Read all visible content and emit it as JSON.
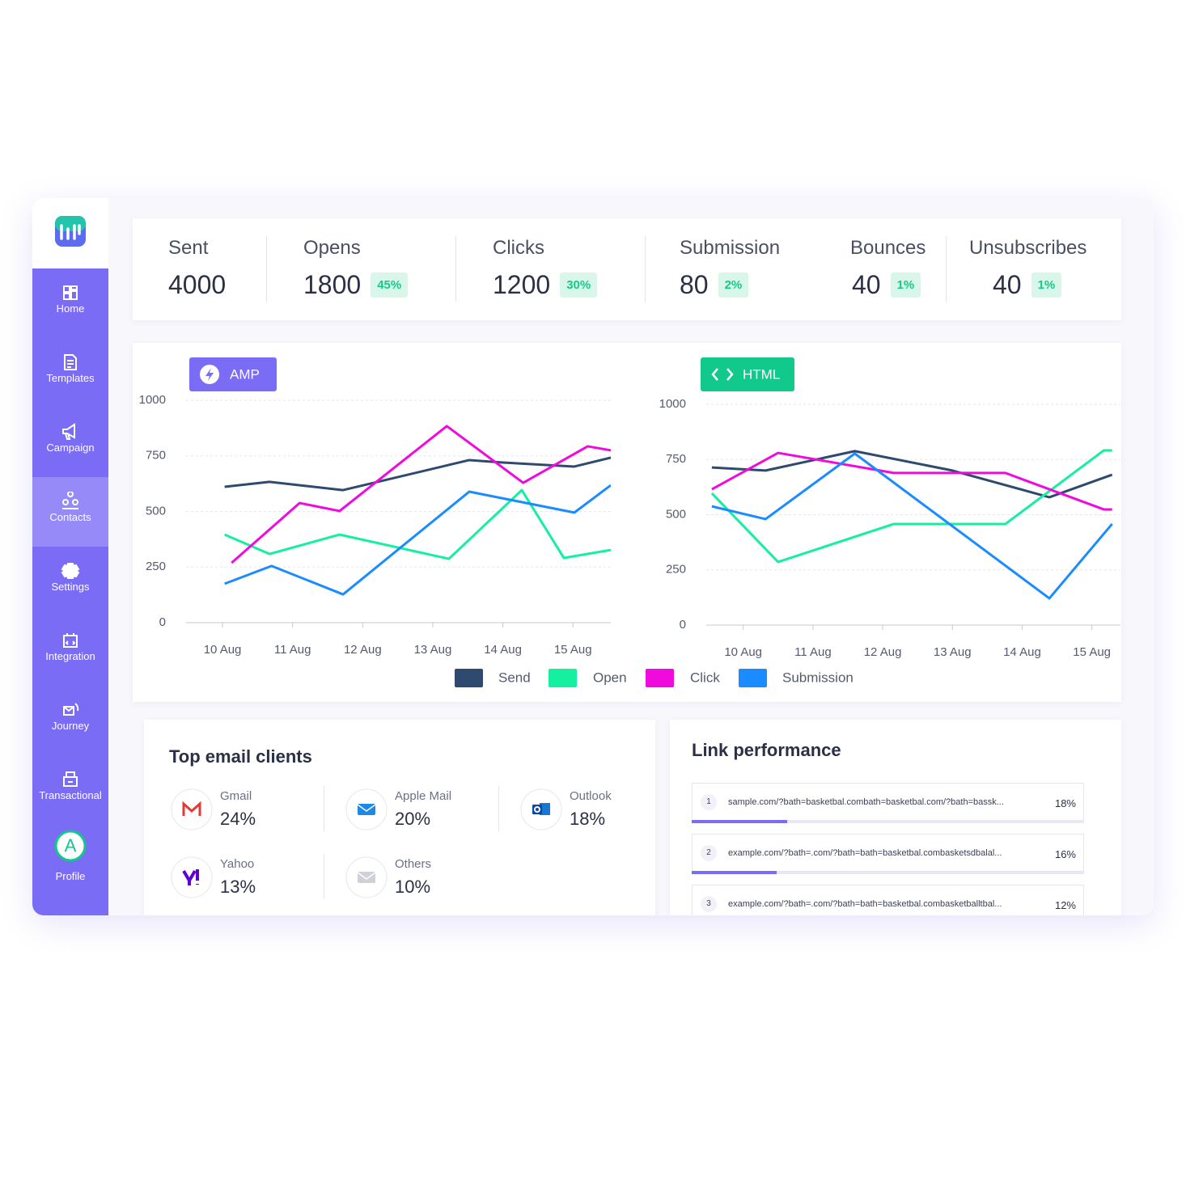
{
  "sidebar": {
    "items": [
      "Home",
      "Templates",
      "Campaign",
      "Contacts",
      "Settings",
      "Integration",
      "Journey",
      "Transactional"
    ],
    "profile": {
      "initial": "A",
      "label": "Profile"
    }
  },
  "stats": [
    {
      "label": "Sent",
      "value": 4000
    },
    {
      "label": "Opens",
      "value": 1800,
      "rate": "45%"
    },
    {
      "label": "Clicks",
      "value": 1200,
      "rate": "30%"
    },
    {
      "label": "Submission",
      "value": 80,
      "rate": "2%"
    },
    {
      "label": "Bounces",
      "value": 40,
      "rate": "1%"
    },
    {
      "label": "Unsubscribes",
      "value": 40,
      "rate": "1%"
    }
  ],
  "chart_data": [
    {
      "type": "line",
      "title": "AMP",
      "grid": true,
      "xlim": [
        9.48,
        15.54
      ],
      "xticks": [
        {
          "value": 10,
          "label": "10 Aug"
        },
        {
          "value": 11,
          "label": "11 Aug"
        },
        {
          "value": 12,
          "label": "12 Aug"
        },
        {
          "value": 13,
          "label": "13 Aug"
        },
        {
          "value": 14,
          "label": "14 Aug"
        },
        {
          "value": 15,
          "label": "15 Aug"
        }
      ],
      "ylim": [
        0,
        1000
      ],
      "yticks": [
        0,
        250,
        500,
        750,
        1000
      ],
      "series": [
        {
          "name": "Send",
          "color": "#2e4a6e",
          "x": [
            10.03,
            10.67,
            11.72,
            13.52,
            14.0,
            15.02,
            15.54
          ],
          "values": [
            611,
            633,
            596,
            731,
            720,
            702,
            742
          ]
        },
        {
          "name": "Open",
          "color": "#14f0a0",
          "x": [
            10.03,
            10.67,
            11.67,
            13.23,
            14.27,
            14.87,
            15.54
          ],
          "values": [
            396,
            309,
            396,
            287,
            596,
            291,
            327
          ]
        },
        {
          "name": "Click",
          "color": "#f00ade",
          "x": [
            10.13,
            11.1,
            11.67,
            13.2,
            14.29,
            15.21,
            15.54
          ],
          "values": [
            269,
            538,
            502,
            884,
            629,
            793,
            775
          ]
        },
        {
          "name": "Submission",
          "color": "#1a8cff",
          "x": [
            10.03,
            10.7,
            11.72,
            13.52,
            15.02,
            15.54
          ],
          "values": [
            175,
            255,
            127,
            589,
            495,
            618
          ]
        }
      ]
    },
    {
      "type": "line",
      "title": "HTML",
      "grid": true,
      "xlim": [
        9.47,
        15.41
      ],
      "xticks": [
        {
          "value": 10,
          "label": "10 Aug"
        },
        {
          "value": 11,
          "label": "11 Aug"
        },
        {
          "value": 12,
          "label": "12 Aug"
        },
        {
          "value": 13,
          "label": "13 Aug"
        },
        {
          "value": 14,
          "label": "14 Aug"
        },
        {
          "value": 15,
          "label": "15 Aug"
        }
      ],
      "ylim": [
        0,
        1000
      ],
      "yticks": [
        0,
        250,
        500,
        750,
        1000
      ],
      "series": [
        {
          "name": "Send",
          "color": "#2e4a6e",
          "x": [
            9.55,
            10.32,
            11.6,
            13.0,
            14.39,
            15.29
          ],
          "values": [
            714,
            700,
            788,
            700,
            579,
            681
          ]
        },
        {
          "name": "Open",
          "color": "#14f0a0",
          "x": [
            9.55,
            10.5,
            12.16,
            13.76,
            15.17,
            15.29
          ],
          "values": [
            597,
            286,
            458,
            458,
            791,
            791
          ]
        },
        {
          "name": "Click",
          "color": "#f00ade",
          "x": [
            9.55,
            10.5,
            12.16,
            13.76,
            15.17,
            15.29
          ],
          "values": [
            615,
            780,
            689,
            689,
            524,
            524
          ]
        },
        {
          "name": "Submission",
          "color": "#1a8cff",
          "x": [
            9.55,
            10.32,
            11.6,
            14.39,
            15.29
          ],
          "values": [
            538,
            480,
            777,
            121,
            458
          ]
        }
      ]
    }
  ],
  "email_clients": {
    "title": "Top email clients",
    "items": [
      {
        "name": "Gmail",
        "share": "24%"
      },
      {
        "name": "Apple Mail",
        "share": "20%"
      },
      {
        "name": "Outlook",
        "share": "18%"
      },
      {
        "name": "Yahoo",
        "share": "13%"
      },
      {
        "name": "Others",
        "share": "10%"
      }
    ]
  },
  "link_performance": {
    "title": "Link performance",
    "links": [
      {
        "rank": 1,
        "url": "sample.com/?bath=basketbal.combath=basketbal.com/?bath=bassk...",
        "value": 18,
        "value_label": "18%"
      },
      {
        "rank": 2,
        "url": "example.com/?bath=.com/?bath=bath=basketbal.combasketsdbalal...",
        "value": 16,
        "value_label": "16%"
      },
      {
        "rank": 3,
        "url": "example.com/?bath=.com/?bath=bath=basketbal.combasketballtbal...",
        "value": 12,
        "value_label": "12%"
      }
    ]
  }
}
